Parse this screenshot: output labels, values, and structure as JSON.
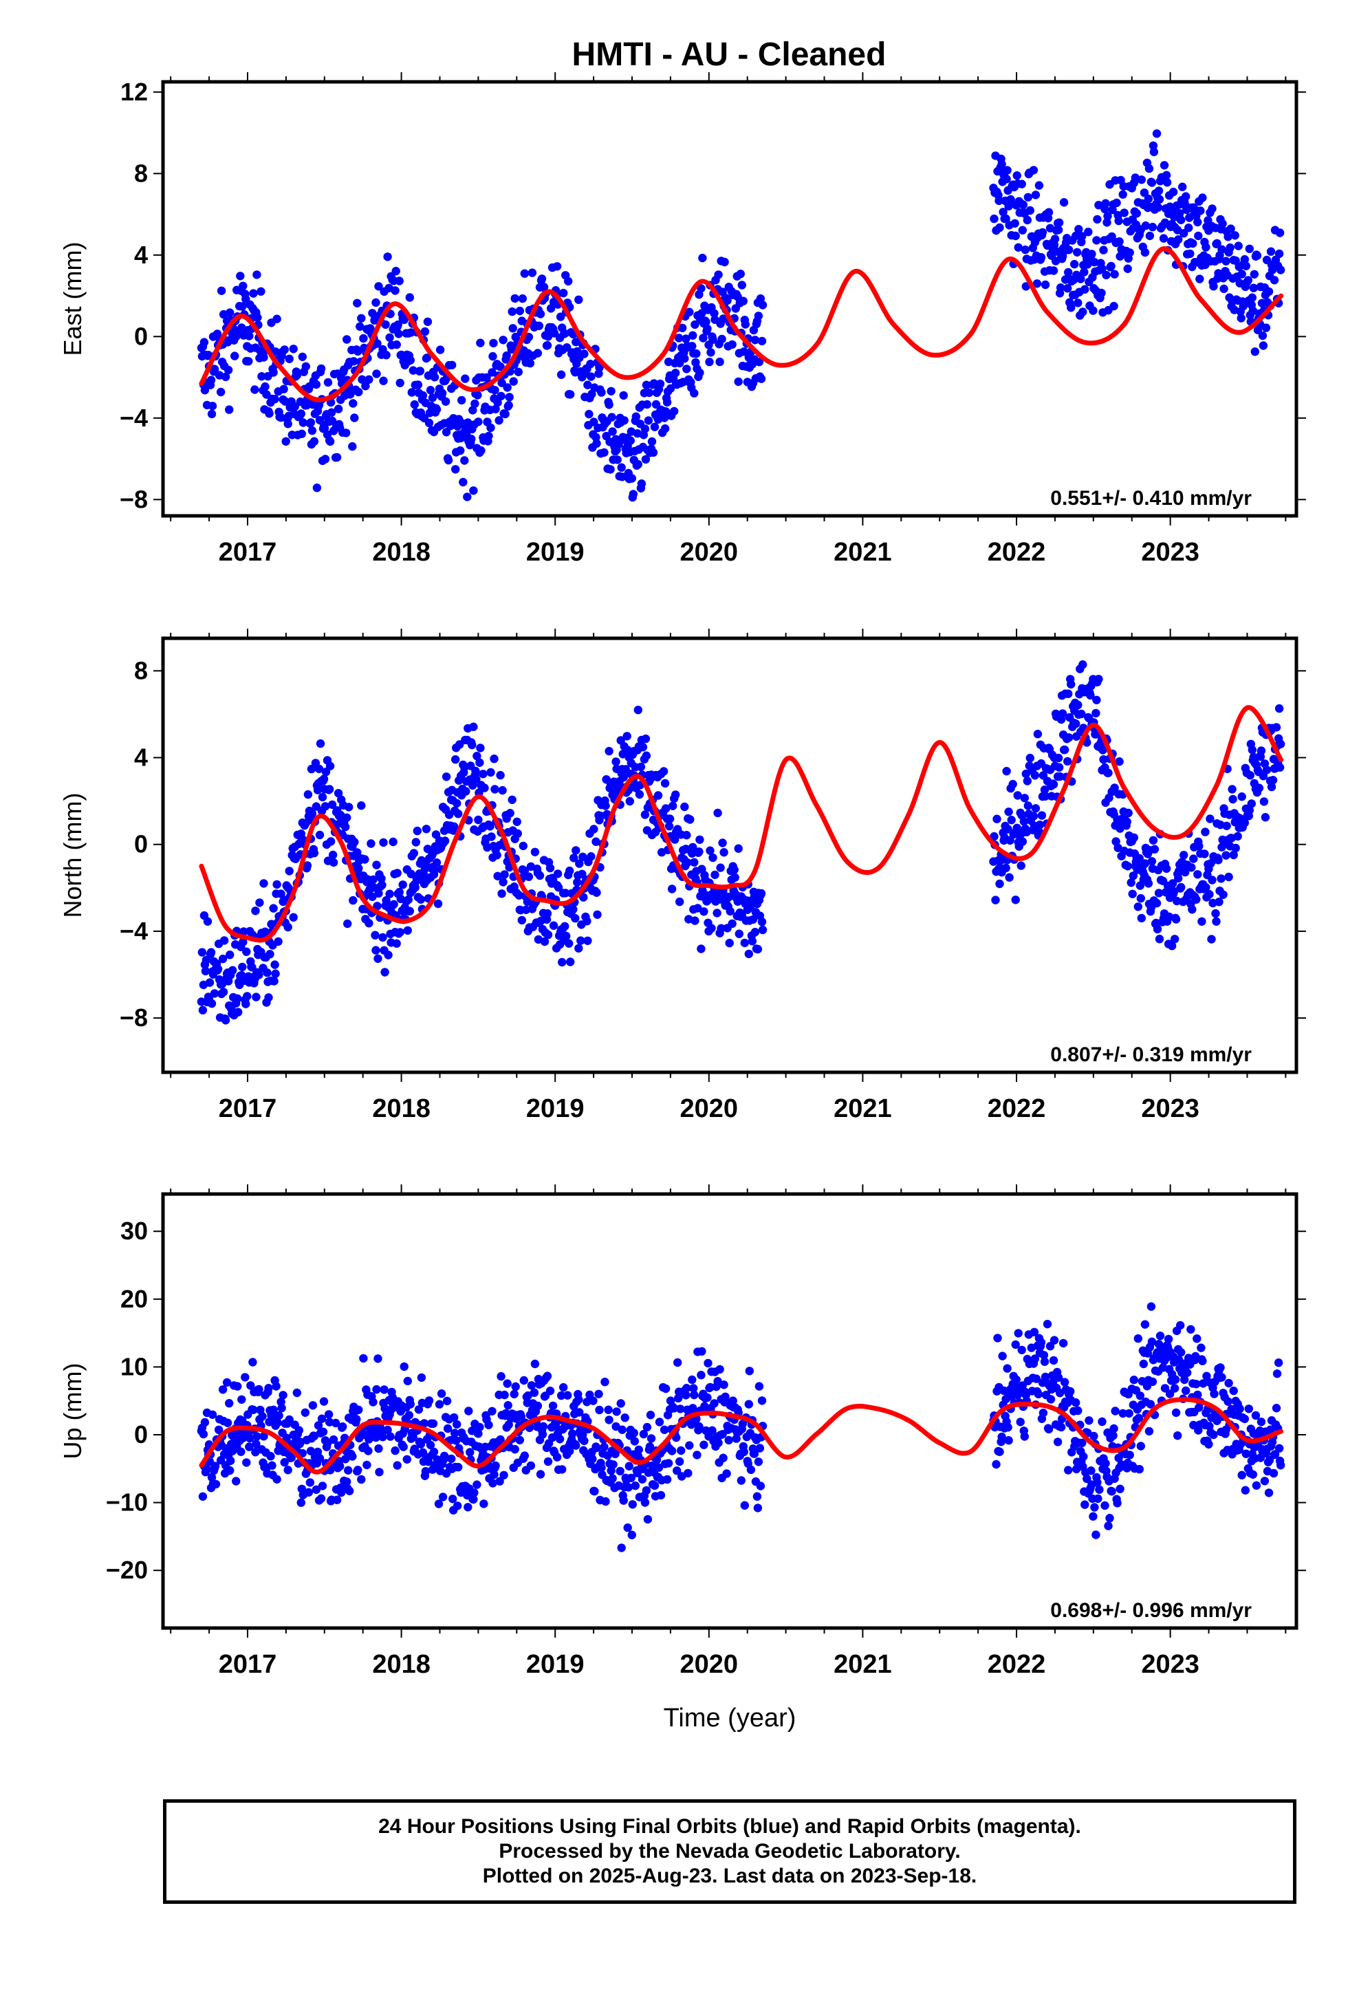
{
  "title": "HMTI  - AU - Cleaned",
  "xlabel": "Time (year)",
  "x_ticks": [
    "2017",
    "2018",
    "2019",
    "2020",
    "2021",
    "2022",
    "2023"
  ],
  "caption": {
    "line1": "24 Hour Positions Using Final Orbits (blue) and Rapid Orbits (magenta).",
    "line2": "Processed by the Nevada Geodetic Laboratory.",
    "line3": "Plotted on 2025-Aug-23. Last data on 2023-Sep-18."
  },
  "colors": {
    "points": "#0000ff",
    "model": "#ff0000",
    "frame": "#000000"
  },
  "chart_data": [
    {
      "type": "scatter",
      "title": "HMTI  - AU - Cleaned",
      "ylabel": "East (mm)",
      "xlim": [
        2016.45,
        2023.82
      ],
      "ylim": [
        -8.8,
        12.5
      ],
      "y_ticks": [
        12,
        8,
        4,
        0,
        -4,
        -8
      ],
      "rate_label": "0.551+/- 0.410 mm/yr",
      "data_segments": [
        {
          "start": 2016.7,
          "end": 2020.35
        },
        {
          "start": 2021.85,
          "end": 2023.72
        }
      ],
      "series": [
        {
          "kind": "model",
          "x": [
            2016.7,
            2016.95,
            2017.2,
            2017.45,
            2017.7,
            2017.95,
            2018.2,
            2018.45,
            2018.7,
            2018.95,
            2019.2,
            2019.45,
            2019.7,
            2019.95,
            2020.2,
            2020.45,
            2020.7,
            2020.95,
            2021.2,
            2021.45,
            2021.7,
            2021.95,
            2022.2,
            2022.45,
            2022.7,
            2022.95,
            2023.2,
            2023.45,
            2023.72
          ],
          "y": [
            -2.3,
            1.0,
            -1.4,
            -3.1,
            -1.9,
            1.6,
            -0.9,
            -2.6,
            -1.4,
            2.2,
            -0.4,
            -2.0,
            -0.9,
            2.7,
            0.1,
            -1.4,
            -0.4,
            3.2,
            0.6,
            -0.9,
            0.1,
            3.8,
            1.2,
            -0.3,
            0.6,
            4.3,
            1.8,
            0.2,
            2.0
          ]
        },
        {
          "kind": "points",
          "x": [
            2016.75,
            2016.85,
            2016.95,
            2017.05,
            2017.15,
            2017.25,
            2017.35,
            2017.45,
            2017.55,
            2017.65,
            2017.75,
            2017.85,
            2017.95,
            2018.05,
            2018.15,
            2018.25,
            2018.35,
            2018.45,
            2018.55,
            2018.65,
            2018.75,
            2018.85,
            2018.95,
            2019.05,
            2019.15,
            2019.25,
            2019.35,
            2019.45,
            2019.55,
            2019.65,
            2019.75,
            2019.85,
            2019.95,
            2020.05,
            2020.15,
            2020.25,
            2021.9,
            2022.0,
            2022.1,
            2022.2,
            2022.3,
            2022.4,
            2022.5,
            2022.6,
            2022.7,
            2022.8,
            2022.9,
            2023.0,
            2023.1,
            2023.2,
            2023.3,
            2023.4,
            2023.5,
            2023.6,
            2023.7
          ],
          "y": [
            -1.9,
            -0.5,
            0.8,
            0.2,
            -1.6,
            -2.6,
            -3.7,
            -4.1,
            -3.4,
            -2.3,
            -1.2,
            0.6,
            1.4,
            -0.6,
            -2.3,
            -3.3,
            -4.4,
            -4.6,
            -3.2,
            -2.1,
            -0.8,
            0.9,
            1.6,
            0.4,
            -1.0,
            -3.2,
            -5.0,
            -6.2,
            -5.6,
            -4.2,
            -2.8,
            -1.0,
            0.5,
            1.1,
            1.9,
            -0.6,
            7.2,
            6.1,
            5.2,
            4.6,
            3.7,
            3.2,
            3.9,
            4.6,
            5.2,
            6.3,
            7.1,
            6.4,
            5.8,
            5.0,
            4.0,
            3.3,
            2.2,
            1.6,
            2.9
          ]
        }
      ]
    },
    {
      "type": "scatter",
      "ylabel": "North (mm)",
      "xlim": [
        2016.45,
        2023.82
      ],
      "ylim": [
        -10.5,
        9.5
      ],
      "y_ticks": [
        8,
        4,
        0,
        -4,
        -8
      ],
      "rate_label": "0.807+/- 0.319 mm/yr",
      "data_segments": [
        {
          "start": 2016.7,
          "end": 2020.35
        },
        {
          "start": 2021.85,
          "end": 2023.72
        }
      ],
      "series": [
        {
          "kind": "model",
          "x": [
            2016.7,
            2016.85,
            2017.0,
            2017.15,
            2017.3,
            2017.45,
            2017.6,
            2017.75,
            2017.9,
            2018.05,
            2018.2,
            2018.35,
            2018.5,
            2018.65,
            2018.8,
            2018.95,
            2019.1,
            2019.25,
            2019.4,
            2019.55,
            2019.7,
            2019.85,
            2020.0,
            2020.15,
            2020.3,
            2020.5,
            2020.7,
            2020.9,
            2021.1,
            2021.3,
            2021.5,
            2021.7,
            2021.9,
            2022.1,
            2022.3,
            2022.5,
            2022.7,
            2022.9,
            2023.1,
            2023.3,
            2023.5,
            2023.72
          ],
          "y": [
            -1.0,
            -3.7,
            -4.3,
            -4.2,
            -2.2,
            1.2,
            0.2,
            -2.5,
            -3.3,
            -3.5,
            -2.6,
            0.2,
            2.2,
            0.6,
            -2.1,
            -2.6,
            -2.6,
            -1.2,
            1.9,
            3.1,
            0.7,
            -1.6,
            -1.9,
            -1.9,
            -1.2,
            3.9,
            1.8,
            -0.8,
            -1.1,
            1.4,
            4.7,
            1.6,
            -0.3,
            -0.4,
            2.4,
            5.5,
            2.6,
            0.7,
            0.5,
            2.7,
            6.3,
            3.9
          ]
        },
        {
          "kind": "points",
          "x": [
            2016.75,
            2016.85,
            2016.95,
            2017.05,
            2017.15,
            2017.25,
            2017.35,
            2017.45,
            2017.55,
            2017.65,
            2017.75,
            2017.85,
            2017.95,
            2018.05,
            2018.15,
            2018.25,
            2018.35,
            2018.45,
            2018.55,
            2018.65,
            2018.75,
            2018.85,
            2018.95,
            2019.05,
            2019.15,
            2019.25,
            2019.35,
            2019.45,
            2019.55,
            2019.65,
            2019.75,
            2019.85,
            2019.95,
            2020.05,
            2020.15,
            2020.25,
            2021.9,
            2022.0,
            2022.1,
            2022.2,
            2022.3,
            2022.4,
            2022.5,
            2022.6,
            2022.7,
            2022.8,
            2022.9,
            2023.0,
            2023.1,
            2023.2,
            2023.3,
            2023.4,
            2023.5,
            2023.6,
            2023.7
          ],
          "y": [
            -5.6,
            -6.4,
            -6.0,
            -5.4,
            -4.7,
            -2.8,
            0.4,
            2.4,
            1.8,
            -0.4,
            -2.0,
            -2.6,
            -2.9,
            -2.3,
            -1.6,
            0.2,
            1.9,
            3.6,
            2.6,
            0.5,
            -1.0,
            -2.0,
            -2.6,
            -3.4,
            -2.5,
            -0.8,
            1.8,
            3.5,
            3.1,
            1.8,
            0.3,
            -1.1,
            -1.7,
            -2.0,
            -2.6,
            -3.4,
            -0.7,
            0.9,
            2.1,
            3.4,
            4.8,
            6.1,
            6.5,
            3.1,
            0.2,
            -1.4,
            -1.8,
            -2.3,
            -1.9,
            -1.6,
            -1.1,
            0.6,
            2.4,
            3.8,
            4.2
          ]
        }
      ]
    },
    {
      "type": "scatter",
      "ylabel": "Up (mm)",
      "xlabel": "Time (year)",
      "xlim": [
        2016.45,
        2023.82
      ],
      "ylim": [
        -28.5,
        35.5
      ],
      "y_ticks": [
        30,
        20,
        10,
        0,
        -10,
        -20
      ],
      "rate_label": "0.698+/- 0.996 mm/yr",
      "data_segments": [
        {
          "start": 2016.7,
          "end": 2020.35
        },
        {
          "start": 2021.85,
          "end": 2023.72
        }
      ],
      "series": [
        {
          "kind": "model",
          "x": [
            2016.7,
            2016.85,
            2017.0,
            2017.15,
            2017.3,
            2017.45,
            2017.6,
            2017.75,
            2017.9,
            2018.05,
            2018.2,
            2018.35,
            2018.5,
            2018.65,
            2018.8,
            2018.95,
            2019.1,
            2019.25,
            2019.4,
            2019.55,
            2019.7,
            2019.85,
            2020.0,
            2020.15,
            2020.3,
            2020.5,
            2020.7,
            2020.9,
            2021.1,
            2021.3,
            2021.5,
            2021.7,
            2021.9,
            2022.1,
            2022.3,
            2022.5,
            2022.7,
            2022.9,
            2023.1,
            2023.3,
            2023.5,
            2023.72
          ],
          "y": [
            -4.5,
            0.3,
            1.0,
            0.2,
            -2.5,
            -5.5,
            -2.5,
            1.4,
            1.8,
            1.4,
            0.3,
            -2.4,
            -4.6,
            -1.8,
            1.4,
            2.6,
            2.0,
            0.9,
            -1.8,
            -4.1,
            -1.5,
            2.4,
            3.2,
            2.8,
            1.6,
            -3.3,
            0.1,
            3.9,
            3.8,
            2.1,
            -1.2,
            -2.5,
            3.5,
            4.5,
            3.2,
            -1.4,
            -1.9,
            3.9,
            5.2,
            3.8,
            -0.8,
            0.5
          ]
        },
        {
          "kind": "points",
          "x": [
            2016.75,
            2016.85,
            2016.95,
            2017.05,
            2017.15,
            2017.25,
            2017.35,
            2017.45,
            2017.55,
            2017.65,
            2017.75,
            2017.85,
            2017.95,
            2018.05,
            2018.15,
            2018.25,
            2018.35,
            2018.45,
            2018.55,
            2018.65,
            2018.75,
            2018.85,
            2018.95,
            2019.05,
            2019.15,
            2019.25,
            2019.35,
            2019.45,
            2019.55,
            2019.65,
            2019.75,
            2019.85,
            2019.95,
            2020.05,
            2020.15,
            2020.25,
            2021.9,
            2022.0,
            2022.1,
            2022.2,
            2022.3,
            2022.4,
            2022.5,
            2022.6,
            2022.7,
            2022.8,
            2022.9,
            2023.0,
            2023.1,
            2023.2,
            2023.3,
            2023.4,
            2023.5,
            2023.6,
            2023.7
          ],
          "y": [
            -3.2,
            0.6,
            2.2,
            2.8,
            1.4,
            -1.2,
            -3.0,
            -4.1,
            -3.2,
            -1.4,
            0.8,
            2.0,
            2.6,
            1.6,
            0.1,
            -1.6,
            -3.2,
            -3.8,
            -2.4,
            -0.2,
            1.8,
            2.8,
            2.4,
            1.2,
            0.4,
            -0.6,
            -2.6,
            -5.2,
            -5.8,
            -3.4,
            -0.5,
            2.4,
            3.8,
            3.2,
            1.5,
            -2.0,
            2.5,
            7.2,
            9.5,
            8.4,
            5.4,
            -2.0,
            -6.2,
            -4.2,
            -1.2,
            4.0,
            9.8,
            11.2,
            9.6,
            7.2,
            4.3,
            1.8,
            -0.8,
            -2.2,
            1.4
          ]
        }
      ]
    }
  ]
}
